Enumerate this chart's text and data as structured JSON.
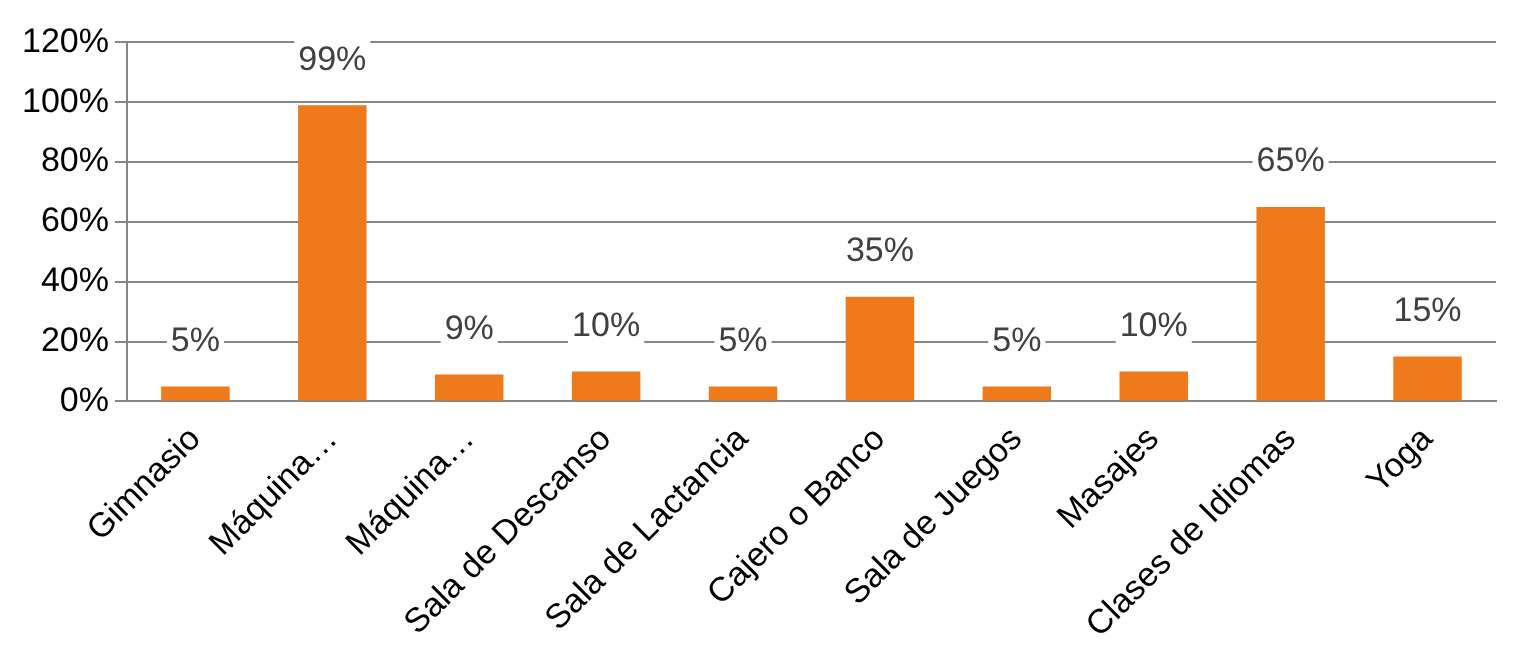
{
  "chart_data": {
    "type": "bar",
    "categories": [
      "Gimnasio",
      "Máquina…",
      "Máquina…",
      "Sala de Descanso",
      "Sala de Lactancia",
      "Cajero o Banco",
      "Sala de Juegos",
      "Masajes",
      "Clases de Idiomas",
      "Yoga"
    ],
    "values": [
      5,
      99,
      9,
      10,
      5,
      35,
      5,
      10,
      65,
      15
    ],
    "value_labels": [
      "5%",
      "99%",
      "9%",
      "10%",
      "5%",
      "35%",
      "5%",
      "10%",
      "65%",
      "15%"
    ],
    "color": "#ee7a1c",
    "ylim": [
      0,
      120
    ],
    "yticks": [
      {
        "value": 0,
        "label": "0%"
      },
      {
        "value": 20,
        "label": "20%"
      },
      {
        "value": 40,
        "label": "40%"
      },
      {
        "value": 60,
        "label": "60%"
      },
      {
        "value": 80,
        "label": "80%"
      },
      {
        "value": 100,
        "label": "100%"
      },
      {
        "value": 120,
        "label": "120%"
      }
    ],
    "grid": "y",
    "legend": false
  }
}
